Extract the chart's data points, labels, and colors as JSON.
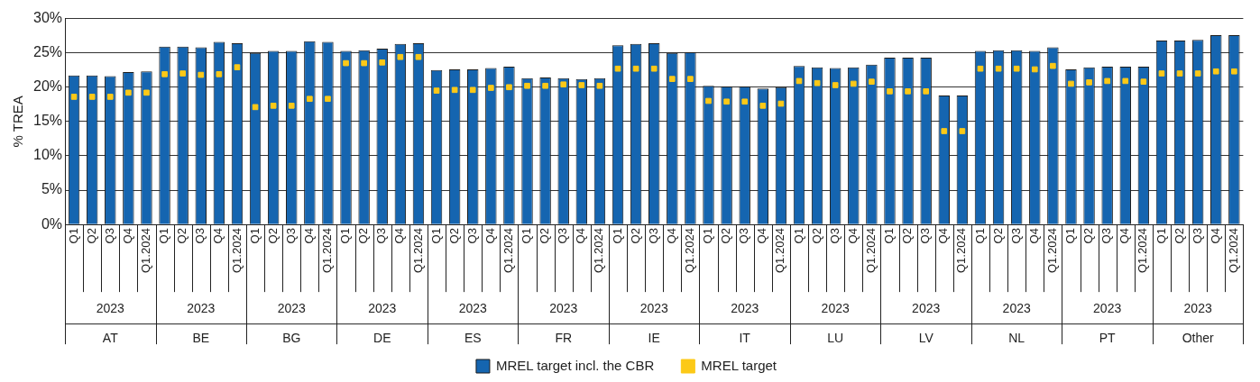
{
  "chart_data": {
    "type": "bar",
    "ylabel": "% TREA",
    "categories": [
      "Q1",
      "Q2",
      "Q3",
      "Q4",
      "Q1.2024",
      "Q1",
      "Q2",
      "Q3",
      "Q4",
      "Q1.2024",
      "Q1",
      "Q2",
      "Q3",
      "Q4",
      "Q1.2024",
      "Q1",
      "Q2",
      "Q3",
      "Q4",
      "Q1.2024",
      "Q1",
      "Q2",
      "Q3",
      "Q4",
      "Q1.2024",
      "Q1",
      "Q2",
      "Q3",
      "Q4",
      "Q1.2024",
      "Q1",
      "Q2",
      "Q3",
      "Q4",
      "Q1.2024",
      "Q1",
      "Q2",
      "Q3",
      "Q4",
      "Q1.2024",
      "Q1",
      "Q2",
      "Q3",
      "Q4",
      "Q1.2024",
      "Q1",
      "Q2",
      "Q3",
      "Q4",
      "Q1.2024",
      "Q1",
      "Q2",
      "Q3",
      "Q4",
      "Q1.2024",
      "Q1",
      "Q2",
      "Q3",
      "Q4",
      "Q1.2024",
      "Q1",
      "Q2",
      "Q3",
      "Q4",
      "Q1.2024"
    ],
    "annotations": [
      "2023",
      "AT",
      "2023",
      "BE",
      "2023",
      "BG",
      "2023",
      "DE",
      "2023",
      "ES",
      "2023",
      "FR",
      "2023",
      "IE",
      "2023",
      "IT",
      "2023",
      "LU",
      "2023",
      "LV",
      "2023",
      "NL",
      "2023",
      "PT",
      "2023",
      "Other"
    ],
    "series": [
      {
        "name": "MREL target incl. the CBR",
        "color": "#1565b0",
        "values": [
          21.7,
          21.7,
          21.6,
          22.2,
          22.3,
          25.9,
          25.9,
          25.8,
          26.6,
          26.4,
          25.0,
          25.3,
          25.3,
          26.7,
          26.6,
          25.3,
          25.4,
          25.6,
          26.3,
          26.4,
          22.5,
          22.6,
          22.6,
          22.8,
          23.0,
          21.3,
          21.4,
          21.3,
          21.2,
          21.3,
          26.1,
          26.3,
          26.4,
          25.0,
          25.1,
          20.2,
          20.1,
          20.1,
          19.8,
          20.0,
          23.1,
          22.9,
          22.8,
          22.9,
          23.3,
          24.3,
          24.3,
          24.3,
          18.8,
          18.8,
          25.3,
          25.4,
          25.4,
          25.3,
          25.8,
          22.6,
          22.9,
          23.0,
          23.0,
          23.0,
          26.8,
          26.8,
          26.9,
          27.6,
          27.6
        ]
      },
      {
        "name": "MREL target",
        "type": "scatter",
        "marker": "square",
        "color": "#fcc917",
        "values": [
          18.6,
          18.6,
          18.6,
          19.2,
          19.2,
          21.9,
          22.0,
          21.8,
          21.9,
          22.9,
          17.1,
          17.3,
          17.3,
          18.3,
          18.3,
          23.5,
          23.5,
          23.6,
          24.4,
          24.4,
          19.5,
          19.6,
          19.6,
          19.9,
          20.0,
          20.2,
          20.2,
          20.4,
          20.3,
          20.2,
          22.7,
          22.7,
          22.7,
          21.2,
          21.2,
          18.0,
          17.9,
          17.9,
          17.3,
          17.6,
          20.9,
          20.6,
          20.3,
          20.5,
          20.8,
          19.4,
          19.4,
          19.4,
          13.6,
          13.6,
          22.7,
          22.7,
          22.7,
          22.6,
          23.1,
          20.5,
          20.7,
          20.9,
          20.9,
          20.8,
          22.0,
          22.0,
          22.0,
          22.3,
          22.3
        ]
      }
    ],
    "ylim": [
      0,
      30
    ],
    "yticks": [
      {
        "value": 0,
        "label": "0%"
      },
      {
        "value": 5,
        "label": "5%"
      },
      {
        "value": 10,
        "label": "10%"
      },
      {
        "value": 15,
        "label": "15%"
      },
      {
        "value": 20,
        "label": "20%"
      },
      {
        "value": 25,
        "label": "25%"
      },
      {
        "value": 30,
        "label": "30%"
      }
    ],
    "grid": "y",
    "legend": "bottom"
  }
}
